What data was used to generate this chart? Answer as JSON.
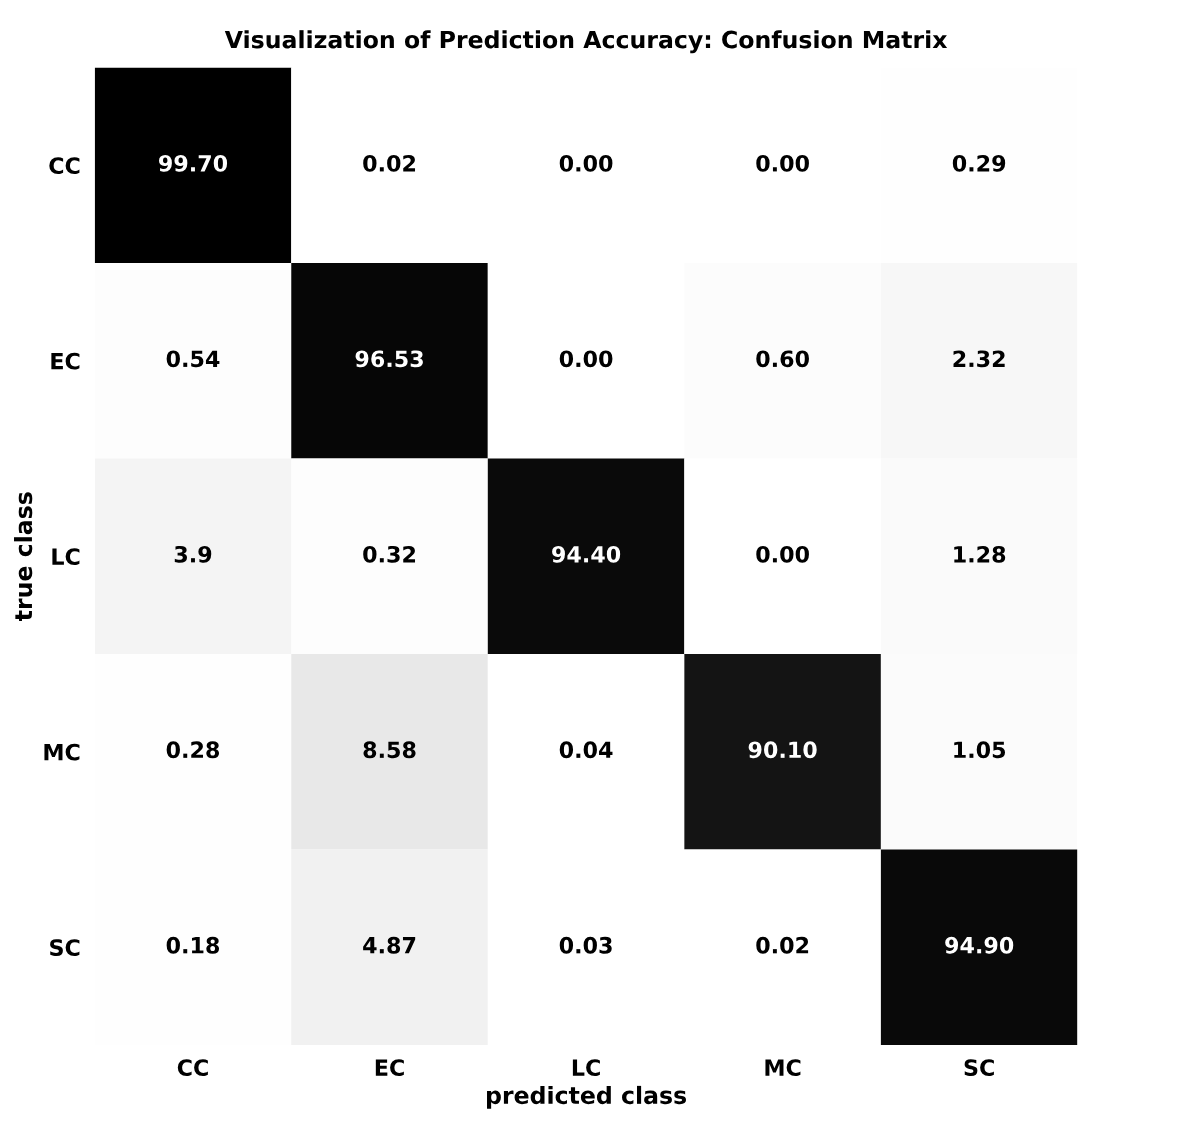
{
  "chart_data": {
    "type": "heatmap",
    "title": "Visualization of Prediction Accuracy: Confusion Matrix",
    "xlabel": "predicted class",
    "ylabel": "true class",
    "categories": [
      "CC",
      "EC",
      "LC",
      "MC",
      "SC"
    ],
    "y_categories": [
      "CC",
      "EC",
      "LC",
      "MC",
      "SC"
    ],
    "cells": [
      [
        99.7,
        0.02,
        0.0,
        0.0,
        0.29
      ],
      [
        0.54,
        96.53,
        0.0,
        0.6,
        2.32
      ],
      [
        3.9,
        0.32,
        94.4,
        0.0,
        1.28
      ],
      [
        0.28,
        8.58,
        0.04,
        90.1,
        1.05
      ],
      [
        0.18,
        4.87,
        0.03,
        0.02,
        94.9
      ]
    ],
    "cell_labels": [
      [
        "99.70",
        "0.02",
        "0.00",
        "0.00",
        "0.29"
      ],
      [
        "0.54",
        "96.53",
        "0.00",
        "0.60",
        "2.32"
      ],
      [
        "3.9",
        "0.32",
        "94.40",
        "0.00",
        "1.28"
      ],
      [
        "0.28",
        "8.58",
        "0.04",
        "90.10",
        "1.05"
      ],
      [
        "0.18",
        "4.87",
        "0.03",
        "0.02",
        "94.90"
      ]
    ]
  }
}
